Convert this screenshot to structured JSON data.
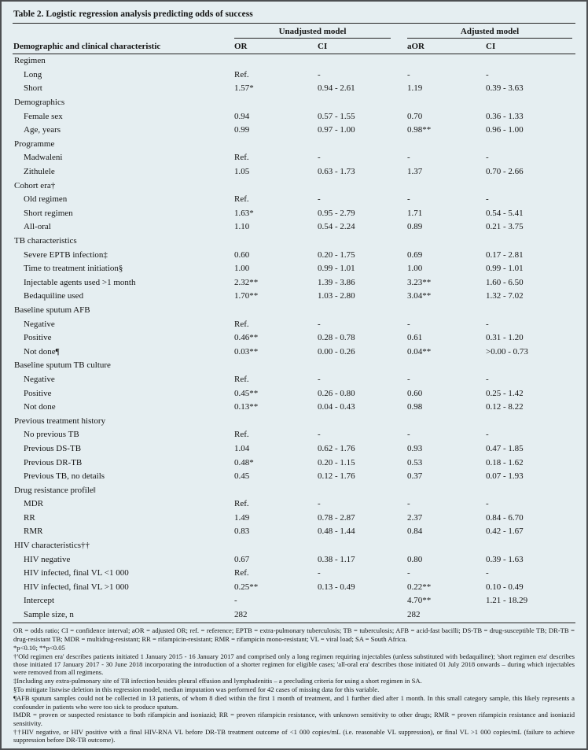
{
  "title": "Table 2. Logistic regression analysis predicting odds of success",
  "header": {
    "characteristic": "Demographic and clinical characteristic",
    "group_unadjusted": "Unadjusted model",
    "group_adjusted": "Adjusted model",
    "or": "OR",
    "ci_unadjusted": "CI",
    "aor": "aOR",
    "ci_adjusted": "CI"
  },
  "rows": [
    {
      "type": "section",
      "label": "Regimen"
    },
    {
      "type": "data",
      "label": "Long",
      "cells": [
        "Ref.",
        "-",
        "-",
        "-"
      ]
    },
    {
      "type": "data",
      "label": "Short",
      "cells": [
        "1.57*",
        "0.94 - 2.61",
        "1.19",
        "0.39 - 3.63"
      ]
    },
    {
      "type": "section",
      "label": "Demographics"
    },
    {
      "type": "data",
      "label": "Female sex",
      "cells": [
        "0.94",
        "0.57 - 1.55",
        "0.70",
        "0.36 - 1.33"
      ]
    },
    {
      "type": "data",
      "label": "Age, years",
      "cells": [
        "0.99",
        "0.97 - 1.00",
        "0.98**",
        "0.96 - 1.00"
      ]
    },
    {
      "type": "section",
      "label": "Programme"
    },
    {
      "type": "data",
      "label": "Madwaleni",
      "cells": [
        "Ref.",
        "-",
        "-",
        "-"
      ]
    },
    {
      "type": "data",
      "label": "Zithulele",
      "cells": [
        "1.05",
        "0.63 - 1.73",
        "1.37",
        "0.70 - 2.66"
      ]
    },
    {
      "type": "section",
      "label": "Cohort era†"
    },
    {
      "type": "data",
      "label": "Old regimen",
      "cells": [
        "Ref.",
        "-",
        "-",
        "-"
      ]
    },
    {
      "type": "data",
      "label": "Short regimen",
      "cells": [
        "1.63*",
        "0.95 - 2.79",
        "1.71",
        "0.54 - 5.41"
      ]
    },
    {
      "type": "data",
      "label": "All-oral",
      "cells": [
        "1.10",
        "0.54 - 2.24",
        "0.89",
        "0.21 - 3.75"
      ]
    },
    {
      "type": "section",
      "label": "TB characteristics"
    },
    {
      "type": "data",
      "label": "Severe EPTB infection‡",
      "cells": [
        "0.60",
        "0.20 - 1.75",
        "0.69",
        "0.17 - 2.81"
      ]
    },
    {
      "type": "data",
      "label": "Time to treatment initiation§",
      "cells": [
        "1.00",
        "0.99 - 1.01",
        "1.00",
        "0.99 - 1.01"
      ]
    },
    {
      "type": "data",
      "label": "Injectable agents used >1 month",
      "cells": [
        "2.32**",
        "1.39 - 3.86",
        "3.23**",
        "1.60 - 6.50"
      ]
    },
    {
      "type": "data",
      "label": "Bedaquiline used",
      "cells": [
        "1.70**",
        "1.03 - 2.80",
        "3.04**",
        "1.32 - 7.02"
      ]
    },
    {
      "type": "section",
      "label": "Baseline sputum AFB"
    },
    {
      "type": "data",
      "label": "Negative",
      "cells": [
        "Ref.",
        "-",
        "-",
        "-"
      ]
    },
    {
      "type": "data",
      "label": "Positive",
      "cells": [
        "0.46**",
        "0.28 - 0.78",
        "0.61",
        "0.31 - 1.20"
      ]
    },
    {
      "type": "data",
      "label": "Not done¶",
      "cells": [
        "0.03**",
        "0.00 - 0.26",
        "0.04**",
        ">0.00 - 0.73"
      ]
    },
    {
      "type": "section",
      "label": "Baseline sputum TB culture"
    },
    {
      "type": "data",
      "label": "Negative",
      "cells": [
        "Ref.",
        "-",
        "-",
        "-"
      ]
    },
    {
      "type": "data",
      "label": "Positive",
      "cells": [
        "0.45**",
        "0.26 - 0.80",
        "0.60",
        "0.25 - 1.42"
      ]
    },
    {
      "type": "data",
      "label": "Not done",
      "cells": [
        "0.13**",
        "0.04 - 0.43",
        "0.98",
        "0.12 - 8.22"
      ]
    },
    {
      "type": "section",
      "label": "Previous treatment history"
    },
    {
      "type": "data",
      "label": "No previous TB",
      "cells": [
        "Ref.",
        "-",
        "-",
        "-"
      ]
    },
    {
      "type": "data",
      "label": "Previous DS-TB",
      "cells": [
        "1.04",
        "0.62 - 1.76",
        "0.93",
        "0.47 - 1.85"
      ]
    },
    {
      "type": "data",
      "label": "Previous DR-TB",
      "cells": [
        "0.48*",
        "0.20 - 1.15",
        "0.53",
        "0.18 - 1.62"
      ]
    },
    {
      "type": "data",
      "label": "Previous TB, no details",
      "cells": [
        "0.45",
        "0.12 - 1.76",
        "0.37",
        "0.07 - 1.93"
      ]
    },
    {
      "type": "section",
      "label": "Drug resistance profile‖"
    },
    {
      "type": "data",
      "label": "MDR",
      "cells": [
        "Ref.",
        "-",
        "-",
        "-"
      ]
    },
    {
      "type": "data",
      "label": "RR",
      "cells": [
        "1.49",
        "0.78 - 2.87",
        "2.37",
        "0.84 - 6.70"
      ]
    },
    {
      "type": "data",
      "label": "RMR",
      "cells": [
        "0.83",
        "0.48 - 1.44",
        "0.84",
        "0.42 - 1.67"
      ]
    },
    {
      "type": "section",
      "label": "HIV characteristics††"
    },
    {
      "type": "data",
      "label": "HIV negative",
      "cells": [
        "0.67",
        "0.38 - 1.17",
        "0.80",
        "0.39 - 1.63"
      ]
    },
    {
      "type": "data",
      "label": "HIV infected, final VL <1 000",
      "cells": [
        "Ref.",
        "-",
        "-",
        "-"
      ]
    },
    {
      "type": "data",
      "label": "HIV infected, final VL >1 000",
      "cells": [
        "0.25**",
        "0.13 - 0.49",
        "0.22**",
        "0.10 - 0.49"
      ]
    },
    {
      "type": "data",
      "label": "Intercept",
      "cells": [
        "-",
        "",
        "4.70**",
        "1.21 - 18.29"
      ]
    },
    {
      "type": "data",
      "label": "Sample size, n",
      "cells": [
        "282",
        "",
        "282",
        ""
      ]
    }
  ],
  "footnotes": [
    "OR = odds ratio; CI = confidence interval; aOR = adjusted OR; ref. = reference; EPTB = extra-pulmonary tuberculosis; TB = tuberculosis; AFB = acid-fast bacilli; DS-TB = drug-susceptible TB; DR-TB = drug-resistant TB; MDR = multidrug-resistant; RR = rifampicin-resistant; RMR = rifampicin mono-resistant; VL = viral load; SA = South Africa.",
    "*p<0.10; **p<0.05",
    "†'Old regimen era' describes patients initiated 1 January 2015 - 16 January 2017 and comprised only a long regimen requiring injectables (unless substituted with bedaquiline); 'short regimen era' describes those initiated 17 January 2017 - 30 June 2018 incorporating the introduction of a shorter regimen for eligible cases; 'all-oral era' describes those initiated 01 July 2018 onwards – during which injectables were removed from all regimens.",
    "‡Including any extra-pulmonary site of TB infection besides pleural effusion and lymphadenitis – a precluding criteria for using a short regimen in SA.",
    "§To mitigate listwise deletion in this regression model, median imputation was performed for 42 cases of missing data for this variable.",
    "¶AFB sputum samples could not be collected in 13 patients, of whom 8 died within the first 1 month of treatment, and 1 further died after 1 month. In this small category sample, this likely represents a confounder in patients who were too sick to produce sputum.",
    "‖MDR = proven or suspected resistance to both rifampicin and isoniazid; RR = proven rifampicin resistance, with unknown sensitivity to other drugs; RMR = proven rifampicin resistance and isoniazid sensitivity.",
    "††HIV negative, or HIV positive with a final HIV-RNA VL before DR-TB treatment outcome of <1 000 copies/mL (i.e. reasonable VL suppression), or final VL >1 000 copies/mL (failure to achieve suppression before DR-TB outcome)."
  ]
}
